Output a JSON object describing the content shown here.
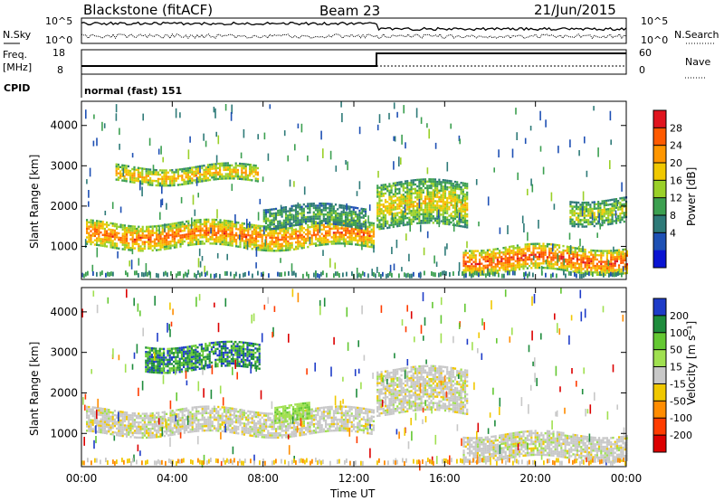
{
  "header": {
    "site": "Blackstone (fitACF)",
    "beam": "Beam 23",
    "date": "21/Jun/2015"
  },
  "labels": {
    "nsky": "N.Sky",
    "nsearch": "N.Search",
    "freq": "Freq.",
    "freq_unit": "[MHz]",
    "nave": "Nave",
    "cpid": "CPID",
    "cpid_value": "normal (fast) 151"
  },
  "noise_panel": {
    "left_ticks": [
      "10^5",
      "10^0"
    ],
    "right_ticks": [
      "10^5",
      "10^0"
    ]
  },
  "freq_panel": {
    "left_ticks": [
      "18",
      "8"
    ],
    "right_ticks": [
      "60",
      "0"
    ]
  },
  "power_colorbar": {
    "title": "Power [dB]",
    "ticks": [
      "28",
      "24",
      "20",
      "16",
      "12",
      "8",
      "4"
    ],
    "colors": [
      "#e0141e",
      "#ff5a00",
      "#ff9600",
      "#f0c800",
      "#9ad028",
      "#3ca050",
      "#2e7a78",
      "#1e50b4",
      "#0a14d2"
    ]
  },
  "velocity_colorbar": {
    "title": "Velocity [m s⁻¹]",
    "ticks": [
      "200",
      "100",
      "50",
      "15",
      "-15",
      "-50",
      "-100",
      "-200"
    ],
    "colors": [
      "#1e3cc8",
      "#1e8c3c",
      "#64c832",
      "#a0e050",
      "#c8c8c8",
      "#f0c800",
      "#ff8c00",
      "#ff3c00",
      "#dc0000"
    ]
  },
  "x_axis": {
    "title": "Time UT",
    "ticks": [
      "00:00",
      "04:00",
      "08:00",
      "12:00",
      "16:00",
      "20:00",
      "00:00"
    ]
  },
  "y_axis": {
    "title": "Slant Range [km]",
    "ticks": [
      "4000",
      "3000",
      "2000",
      "1000"
    ]
  },
  "chart_data": [
    {
      "type": "heatmap",
      "title": "Power [dB]",
      "xlabel": "Time UT",
      "ylabel": "Slant Range [km]",
      "xlim_hours": [
        0,
        24
      ],
      "ylim_km": [
        180,
        4600
      ],
      "echo_regions": [
        {
          "t_start": 1.5,
          "t_end": 7.8,
          "range_start": 2600,
          "range_end": 3000,
          "power_db": 20
        },
        {
          "t_start": 0.2,
          "t_end": 12.9,
          "range_start": 1000,
          "range_end": 1600,
          "power_db": 24
        },
        {
          "t_start": 8.0,
          "t_end": 12.5,
          "range_start": 1500,
          "range_end": 2000,
          "power_db": 12
        },
        {
          "t_start": 13.0,
          "t_end": 17.0,
          "range_start": 1500,
          "range_end": 2600,
          "power_db": 18
        },
        {
          "t_start": 16.8,
          "t_end": 24,
          "range_start": 400,
          "range_end": 1000,
          "power_db": 26
        },
        {
          "t_start": 21.5,
          "t_end": 24,
          "range_start": 1600,
          "range_end": 2200,
          "power_db": 16
        }
      ]
    },
    {
      "type": "heatmap",
      "title": "Velocity [m s⁻¹]",
      "xlabel": "Time UT",
      "ylabel": "Slant Range [km]",
      "xlim_hours": [
        0,
        24
      ],
      "ylim_km": [
        180,
        4600
      ],
      "echo_regions": [
        {
          "t_start": 2.8,
          "t_end": 7.8,
          "range_start": 2600,
          "range_end": 3200,
          "velocity": 150
        },
        {
          "t_start": 0.2,
          "t_end": 12.9,
          "range_start": 1000,
          "range_end": 1600,
          "velocity": 0
        },
        {
          "t_start": 8.5,
          "t_end": 10.0,
          "range_start": 1300,
          "range_end": 1700,
          "velocity": 40
        },
        {
          "t_start": 13.0,
          "t_end": 17.0,
          "range_start": 1500,
          "range_end": 2600,
          "velocity": 0
        },
        {
          "t_start": 16.8,
          "t_end": 24,
          "range_start": 400,
          "range_end": 1000,
          "velocity": 0
        }
      ]
    }
  ]
}
